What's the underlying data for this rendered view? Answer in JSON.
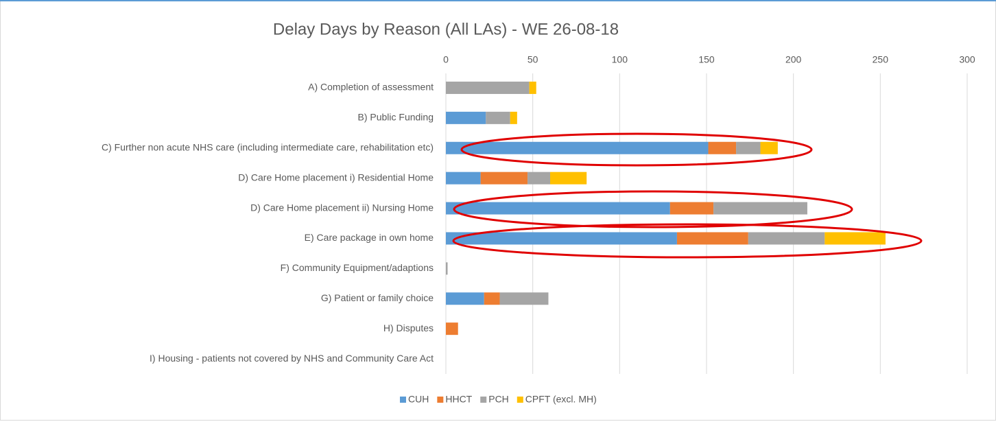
{
  "chart_data": {
    "type": "stacked-bar-horizontal",
    "title": "Delay Days by Reason (All LAs) - WE 26-08-18",
    "categories": [
      "A) Completion of assessment",
      "B) Public Funding",
      "C) Further non acute NHS care (including intermediate care, rehabilitation etc)",
      "D) Care Home placement   i) Residential Home",
      "D) Care Home placement  ii) Nursing Home",
      "E) Care package in own home",
      "F) Community Equipment/adaptions",
      "G) Patient or family choice",
      "H) Disputes",
      "I) Housing - patients not covered by NHS and Community Care Act"
    ],
    "series": [
      {
        "name": "CUH",
        "color": "#5b9bd5",
        "values": [
          0,
          23,
          151,
          20,
          129,
          133,
          0,
          22,
          0,
          0
        ]
      },
      {
        "name": "HHCT",
        "color": "#ed7d31",
        "values": [
          0,
          0,
          16,
          27,
          25,
          41,
          0,
          9,
          7,
          0
        ]
      },
      {
        "name": "PCH",
        "color": "#a5a5a5",
        "values": [
          48,
          14,
          14,
          13,
          54,
          44,
          1,
          28,
          0,
          0
        ]
      },
      {
        "name": "CPFT (excl. MH)",
        "color": "#ffc000",
        "values": [
          4,
          4,
          10,
          21,
          0,
          35,
          0,
          0,
          0,
          0
        ]
      }
    ],
    "xlim": [
      0,
      300
    ],
    "xticks": [
      0,
      50,
      100,
      150,
      200,
      250,
      300
    ],
    "grid": true,
    "legend": "bottom"
  }
}
